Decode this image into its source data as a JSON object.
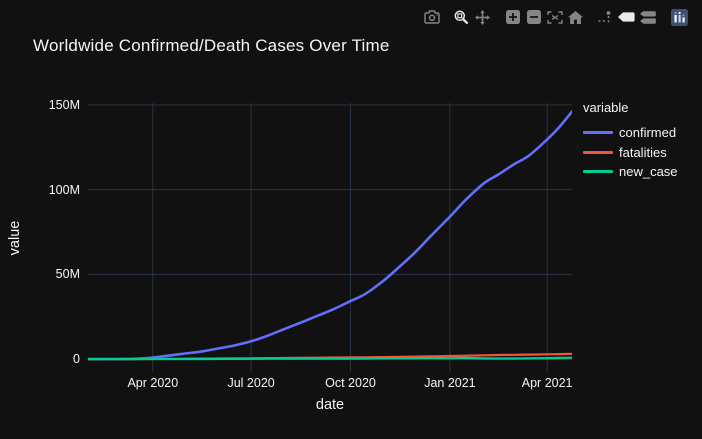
{
  "title": "Worldwide Confirmed/Death Cases Over Time",
  "modebar": {
    "groups": [
      [
        "camera-icon"
      ],
      [
        "zoom-icon",
        "pan-icon"
      ],
      [
        "zoom-in-icon",
        "zoom-out-icon",
        "autoscale-icon",
        "home-icon"
      ],
      [
        "spikelines-icon",
        "hover-closest-icon",
        "hover-compare-icon"
      ],
      [
        "plotly-logo-icon"
      ]
    ],
    "active": [
      "zoom-icon",
      "hover-closest-icon"
    ]
  },
  "colors": {
    "background": "#111111",
    "grid": "#283442",
    "text": "#f2f5fa",
    "modebar_icon": "#868686",
    "modebar_active": "#e9e9e9",
    "logo_bg": "#3f4f75"
  },
  "chart_data": {
    "type": "line",
    "title": "Worldwide Confirmed/Death Cases Over Time",
    "xlabel": "date",
    "ylabel": "value",
    "legend_title": "variable",
    "legend_position": "right",
    "grid": true,
    "units": "millions",
    "xlim": [
      "2020-02-01",
      "2021-04-24"
    ],
    "ylim": [
      -7.6,
      151.1
    ],
    "xticks": [
      {
        "date": "2020-04-01",
        "label": "Apr 2020"
      },
      {
        "date": "2020-07-01",
        "label": "Jul 2020"
      },
      {
        "date": "2020-10-01",
        "label": "Oct 2020"
      },
      {
        "date": "2021-01-01",
        "label": "Jan 2021"
      },
      {
        "date": "2021-04-01",
        "label": "Apr 2021"
      }
    ],
    "yticks": [
      {
        "value": 0,
        "label": "0"
      },
      {
        "value": 50,
        "label": "50M"
      },
      {
        "value": 100,
        "label": "100M"
      },
      {
        "value": 150,
        "label": "150M"
      }
    ],
    "x_dates": [
      "2020-02-01",
      "2020-02-15",
      "2020-03-01",
      "2020-03-15",
      "2020-04-01",
      "2020-04-15",
      "2020-05-01",
      "2020-05-15",
      "2020-06-01",
      "2020-06-15",
      "2020-07-01",
      "2020-07-15",
      "2020-08-01",
      "2020-08-15",
      "2020-09-01",
      "2020-09-15",
      "2020-10-01",
      "2020-10-15",
      "2020-11-01",
      "2020-11-15",
      "2020-12-01",
      "2020-12-15",
      "2021-01-01",
      "2021-01-15",
      "2021-02-01",
      "2021-02-15",
      "2021-03-01",
      "2021-03-15",
      "2021-04-01",
      "2021-04-12",
      "2021-04-24"
    ],
    "series": [
      {
        "name": "confirmed",
        "color": "#636efa",
        "width": 2.6,
        "values": [
          0.01,
          0.05,
          0.09,
          0.17,
          0.93,
          2.0,
          3.3,
          4.4,
          6.3,
          8.0,
          10.5,
          13.5,
          17.8,
          21.3,
          25.7,
          29.4,
          34.2,
          38.6,
          46.5,
          54.3,
          63.7,
          73.1,
          84.0,
          93.5,
          103.5,
          109.0,
          114.8,
          120.0,
          129.6,
          136.7,
          146.0
        ]
      },
      {
        "name": "fatalities",
        "color": "#ef553b",
        "width": 2.2,
        "values": [
          0.001,
          0.002,
          0.003,
          0.007,
          0.05,
          0.13,
          0.24,
          0.3,
          0.38,
          0.44,
          0.51,
          0.58,
          0.68,
          0.77,
          0.86,
          0.93,
          1.02,
          1.1,
          1.21,
          1.32,
          1.48,
          1.63,
          1.83,
          2.01,
          2.24,
          2.41,
          2.55,
          2.67,
          2.84,
          2.95,
          3.1
        ]
      },
      {
        "name": "new_case",
        "color": "#00cc96",
        "width": 2.2,
        "values": [
          0.002,
          0.002,
          0.001,
          0.01,
          0.07,
          0.07,
          0.08,
          0.09,
          0.1,
          0.13,
          0.18,
          0.22,
          0.25,
          0.26,
          0.28,
          0.29,
          0.32,
          0.38,
          0.5,
          0.58,
          0.57,
          0.65,
          0.55,
          0.7,
          0.45,
          0.38,
          0.38,
          0.5,
          0.6,
          0.74,
          0.83
        ]
      }
    ]
  }
}
